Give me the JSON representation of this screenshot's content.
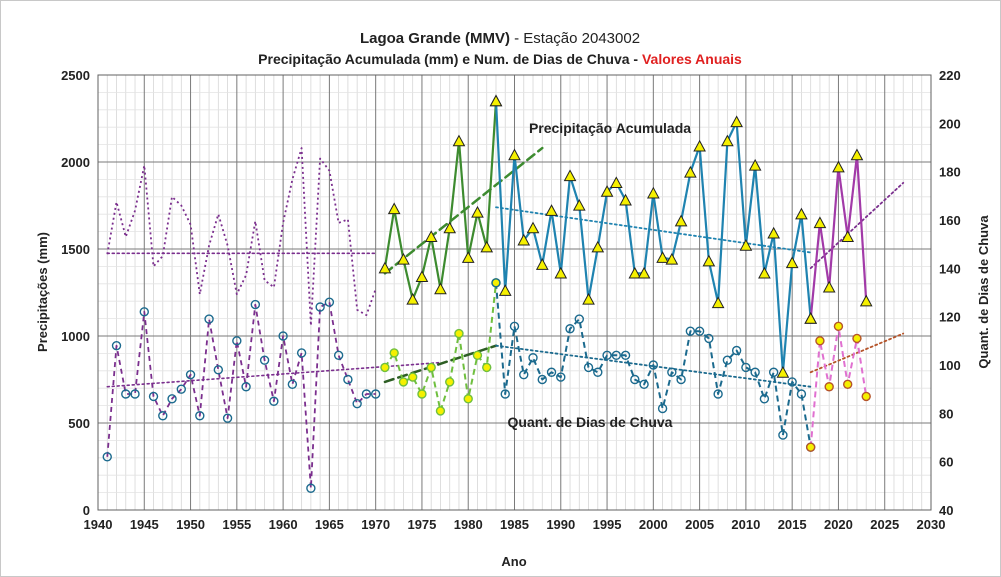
{
  "chart_data": {
    "type": "line",
    "title_line1_main": "Lagoa Grande (MMV)",
    "title_line1_rest": " - Estação 2043002",
    "title_line2_main": "Precipitação Acumulada (mm) e Num. de Dias de Chuva - ",
    "title_line2_highlight": "Valores Anuais",
    "xlabel": "Ano",
    "ylabel_left": "Precipitações (mm)",
    "ylabel_right": "Quant. de Dias de Chuva",
    "xlim": [
      1940,
      2030
    ],
    "ylim_left": [
      0,
      2500
    ],
    "ylim_right": [
      40,
      220
    ],
    "xticks": [
      "1940",
      "1945",
      "1950",
      "1955",
      "1960",
      "1965",
      "1970",
      "1975",
      "1980",
      "1985",
      "1990",
      "1995",
      "2000",
      "2005",
      "2010",
      "2015",
      "2020",
      "2025",
      "2030"
    ],
    "yticks_left": [
      "0",
      "500",
      "1000",
      "1500",
      "2000",
      "2500"
    ],
    "yticks_right": [
      "40",
      "60",
      "80",
      "100",
      "120",
      "140",
      "160",
      "180",
      "200",
      "220"
    ],
    "grid": true,
    "annotations": [
      "Precipitação Acumulada",
      "Quant. de Dias de Chuva"
    ],
    "colors": {
      "purple": "#7b2f8e",
      "green": "#3d8b2f",
      "blue": "#1f83b0",
      "magenta": "#a23aa8",
      "light_green": "#6fbf3f",
      "dark_blue": "#1b6a8e",
      "pink": "#e070d0",
      "brown": "#b5542a",
      "title_red": "#e02020",
      "marker_yellow": "#f5f000"
    },
    "series": [
      {
        "axis": "left",
        "style": "dotted",
        "x": [
          1941,
          1942,
          1943,
          1944,
          1945,
          1946,
          1947,
          1948,
          1949,
          1950,
          1951,
          1952,
          1953,
          1954,
          1955,
          1956,
          1957,
          1958,
          1959,
          1960,
          1961,
          1962,
          1963,
          1964,
          1965,
          1966,
          1967,
          1968,
          1969,
          1970
        ],
        "values": [
          1470,
          1770,
          1570,
          1720,
          1980,
          1400,
          1460,
          1800,
          1750,
          1640,
          1240,
          1520,
          1700,
          1520,
          1240,
          1350,
          1660,
          1320,
          1280,
          1650,
          1900,
          2080,
          1060,
          2020,
          1950,
          1650,
          1670,
          1150,
          1120,
          1270
        ]
      },
      {
        "axis": "left",
        "style": "solid",
        "x": [
          1971,
          1972,
          1973,
          1974,
          1975,
          1976,
          1977,
          1978,
          1979,
          1980,
          1981,
          1982,
          1983
        ],
        "values": [
          1390,
          1730,
          1440,
          1210,
          1340,
          1570,
          1270,
          1620,
          2120,
          1450,
          1710,
          1510,
          2350
        ]
      },
      {
        "axis": "left",
        "style": "solid",
        "x": [
          1983,
          1984,
          1985,
          1986,
          1987,
          1988,
          1989,
          1990,
          1991,
          1992,
          1993,
          1994,
          1995,
          1996,
          1997,
          1998,
          1999,
          2000,
          2001,
          2002,
          2003,
          2004,
          2005,
          2006,
          2007,
          2008,
          2009,
          2010,
          2011,
          2012,
          2013,
          2014,
          2015,
          2016,
          2017
        ],
        "values": [
          2350,
          1260,
          2040,
          1550,
          1620,
          1410,
          1720,
          1360,
          1920,
          1750,
          1210,
          1510,
          1830,
          1880,
          1780,
          1360,
          1360,
          1820,
          1450,
          1440,
          1660,
          1940,
          2090,
          1430,
          1190,
          2120,
          2230,
          1520,
          1980,
          1360,
          1590,
          790,
          1420,
          1700,
          1100
        ]
      },
      {
        "axis": "left",
        "style": "solid",
        "x": [
          2017,
          2018,
          2019,
          2020,
          2021,
          2022,
          2023
        ],
        "values": [
          1100,
          1650,
          1280,
          1970,
          1570,
          2040,
          1200
        ]
      },
      {
        "axis": "right",
        "style": "dashed",
        "x": [
          1941,
          1942,
          1943,
          1944,
          1945,
          1946,
          1947,
          1948,
          1949,
          1950,
          1951,
          1952,
          1953,
          1954,
          1955,
          1956,
          1957,
          1958,
          1959,
          1960,
          1961,
          1962,
          1963,
          1964,
          1965,
          1966,
          1967,
          1968,
          1969,
          1970
        ],
        "values": [
          62,
          108,
          88,
          88,
          122,
          87,
          79,
          86,
          90,
          96,
          79,
          119,
          98,
          78,
          110,
          91,
          125,
          102,
          85,
          112,
          92,
          105,
          49,
          124,
          126,
          104,
          94,
          84,
          88,
          88
        ]
      },
      {
        "axis": "right",
        "style": "dashed",
        "x": [
          1971,
          1972,
          1973,
          1974,
          1975,
          1976,
          1977,
          1978,
          1979,
          1980,
          1981,
          1982,
          1983
        ],
        "values": [
          99,
          105,
          93,
          95,
          88,
          99,
          81,
          93,
          113,
          86,
          104,
          99,
          134
        ]
      },
      {
        "axis": "right",
        "style": "dashed",
        "x": [
          1983,
          1984,
          1985,
          1986,
          1987,
          1988,
          1989,
          1990,
          1991,
          1992,
          1993,
          1994,
          1995,
          1996,
          1997,
          1998,
          1999,
          2000,
          2001,
          2002,
          2003,
          2004,
          2005,
          2006,
          2007,
          2008,
          2009,
          2010,
          2011,
          2012,
          2013,
          2014,
          2015,
          2016,
          2017
        ],
        "values": [
          134,
          88,
          116,
          96,
          103,
          94,
          97,
          95,
          115,
          119,
          99,
          97,
          104,
          104,
          104,
          94,
          92,
          100,
          82,
          97,
          94,
          114,
          114,
          111,
          88,
          102,
          106,
          99,
          97,
          86,
          97,
          71,
          93,
          88,
          66
        ]
      },
      {
        "axis": "right",
        "style": "dashed",
        "x": [
          2017,
          2018,
          2019,
          2020,
          2021,
          2022,
          2023
        ],
        "values": [
          66,
          110,
          91,
          116,
          92,
          111,
          87
        ]
      }
    ],
    "trendlines": [
      {
        "axis": "left",
        "x": [
          1941,
          1970
        ],
        "values": [
          1475,
          1475
        ]
      },
      {
        "axis": "left",
        "x": [
          1971,
          1988
        ],
        "values": [
          1360,
          2080
        ]
      },
      {
        "axis": "left",
        "x": [
          1983,
          2017
        ],
        "values": [
          1740,
          1480
        ]
      },
      {
        "axis": "left",
        "x": [
          2017,
          2027
        ],
        "values": [
          1390,
          1880
        ]
      },
      {
        "axis": "right",
        "x": [
          1941,
          1977
        ],
        "values": [
          91,
          101
        ]
      },
      {
        "axis": "right",
        "x": [
          1971,
          1983
        ],
        "values": [
          93,
          108
        ]
      },
      {
        "axis": "right",
        "x": [
          1983,
          2017
        ],
        "values": [
          108,
          91
        ]
      },
      {
        "axis": "right",
        "x": [
          2017,
          2027
        ],
        "values": [
          97,
          113
        ]
      }
    ]
  }
}
